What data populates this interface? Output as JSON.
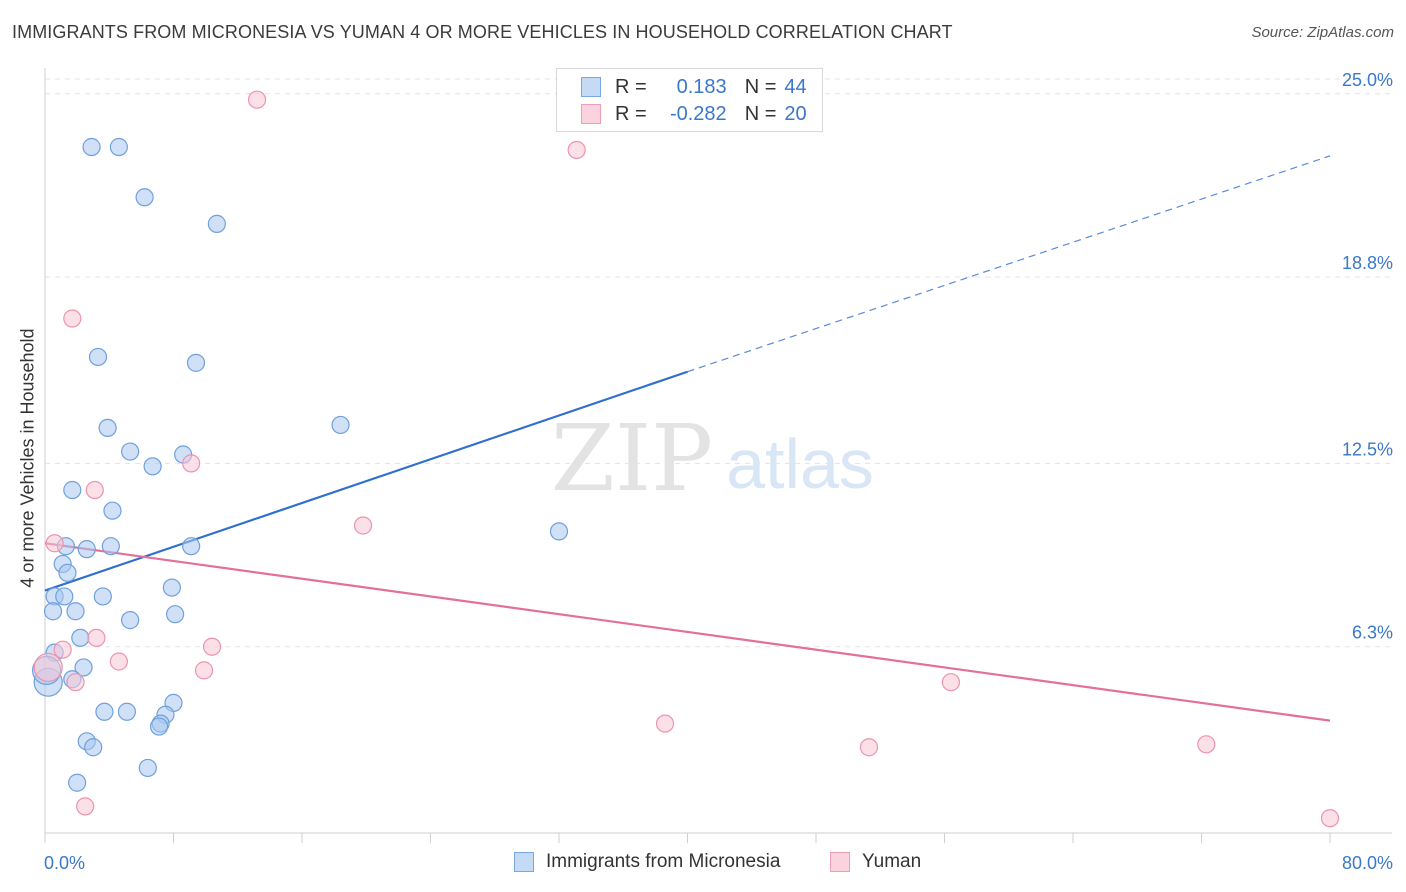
{
  "title": "IMMIGRANTS FROM MICRONESIA VS YUMAN 4 OR MORE VEHICLES IN HOUSEHOLD CORRELATION CHART",
  "source": "Source: ZipAtlas.com",
  "watermark": {
    "zip": "ZIP",
    "atlas": "atlas"
  },
  "legend": {
    "r_label": "R =",
    "n_label": "N =",
    "series": [
      {
        "r": "0.183",
        "n": "44",
        "color": "#a9c8f0",
        "border": "#6fa0dd"
      },
      {
        "r": "-0.282",
        "n": "20",
        "color": "#f9c7d6",
        "border": "#ec93ae"
      }
    ]
  },
  "bottom_legend": [
    {
      "label": "Immigrants from Micronesia",
      "color": "#c5dbf5",
      "border": "#7aa7df"
    },
    {
      "label": "Yuman",
      "color": "#fbd3df",
      "border": "#ee9fb8"
    }
  ],
  "chart_data": {
    "type": "scatter",
    "title": "IMMIGRANTS FROM MICRONESIA VS YUMAN 4 OR MORE VEHICLES IN HOUSEHOLD CORRELATION CHART",
    "xlabel": "",
    "ylabel": "4 or more Vehicles in Household",
    "xlim": [
      0,
      80
    ],
    "ylim": [
      0,
      25.5
    ],
    "x_tick_labels": [
      "0.0%",
      "80.0%"
    ],
    "y_ticks": [
      6.3,
      12.5,
      18.8,
      25.0
    ],
    "y_tick_labels": [
      "6.3%",
      "12.5%",
      "18.8%",
      "25.0%"
    ],
    "grid": true,
    "legend_position": "top-center",
    "series": [
      {
        "name": "Immigrants from Micronesia",
        "color": "#a9c8f0",
        "stroke": "#6fa0dd",
        "points": [
          [
            2.9,
            23.2
          ],
          [
            4.6,
            23.2
          ],
          [
            6.2,
            21.5
          ],
          [
            10.7,
            20.6
          ],
          [
            3.3,
            16.1
          ],
          [
            9.4,
            15.9
          ],
          [
            3.9,
            13.7
          ],
          [
            18.4,
            13.8
          ],
          [
            5.3,
            12.9
          ],
          [
            8.6,
            12.8
          ],
          [
            6.7,
            12.4
          ],
          [
            1.7,
            11.6
          ],
          [
            4.2,
            10.9
          ],
          [
            32.0,
            10.2
          ],
          [
            1.3,
            9.7
          ],
          [
            2.6,
            9.6
          ],
          [
            4.1,
            9.7
          ],
          [
            9.1,
            9.7
          ],
          [
            1.1,
            9.1
          ],
          [
            1.4,
            8.8
          ],
          [
            7.9,
            8.3
          ],
          [
            0.6,
            8.0
          ],
          [
            3.6,
            8.0
          ],
          [
            1.2,
            8.0
          ],
          [
            0.5,
            7.5
          ],
          [
            8.1,
            7.4
          ],
          [
            1.9,
            7.5
          ],
          [
            5.3,
            7.2
          ],
          [
            2.2,
            6.6
          ],
          [
            0.6,
            6.1
          ],
          [
            2.4,
            5.6
          ],
          [
            1.7,
            5.2
          ],
          [
            0.2,
            5.1
          ],
          [
            8.0,
            4.4
          ],
          [
            3.7,
            4.1
          ],
          [
            5.1,
            4.1
          ],
          [
            7.5,
            4.0
          ],
          [
            7.2,
            3.7
          ],
          [
            7.1,
            3.6
          ],
          [
            2.6,
            3.1
          ],
          [
            3.0,
            2.9
          ],
          [
            6.4,
            2.2
          ],
          [
            2.0,
            1.7
          ],
          [
            0.1,
            5.5
          ]
        ]
      },
      {
        "name": "Yuman",
        "color": "#f9c7d6",
        "stroke": "#ec93ae",
        "points": [
          [
            13.2,
            24.8
          ],
          [
            33.1,
            23.1
          ],
          [
            1.7,
            17.4
          ],
          [
            9.1,
            12.5
          ],
          [
            3.1,
            11.6
          ],
          [
            19.8,
            10.4
          ],
          [
            0.6,
            9.8
          ],
          [
            3.2,
            6.6
          ],
          [
            10.4,
            6.3
          ],
          [
            1.1,
            6.2
          ],
          [
            4.6,
            5.8
          ],
          [
            9.9,
            5.5
          ],
          [
            1.9,
            5.1
          ],
          [
            38.6,
            3.7
          ],
          [
            51.3,
            2.9
          ],
          [
            56.4,
            5.1
          ],
          [
            72.3,
            3.0
          ],
          [
            2.5,
            0.9
          ],
          [
            80.0,
            0.5
          ],
          [
            0.2,
            5.6
          ]
        ]
      }
    ],
    "trendlines": [
      {
        "series": "Immigrants from Micronesia",
        "color": "#2f6fcf",
        "x0": 0,
        "y0": 8.2,
        "x1": 40,
        "y1": 15.6,
        "dashed_to": [
          80,
          22.9
        ]
      },
      {
        "series": "Yuman",
        "color": "#e3709a",
        "x0": 0,
        "y0": 9.8,
        "x1": 80,
        "y1": 3.8
      }
    ]
  }
}
